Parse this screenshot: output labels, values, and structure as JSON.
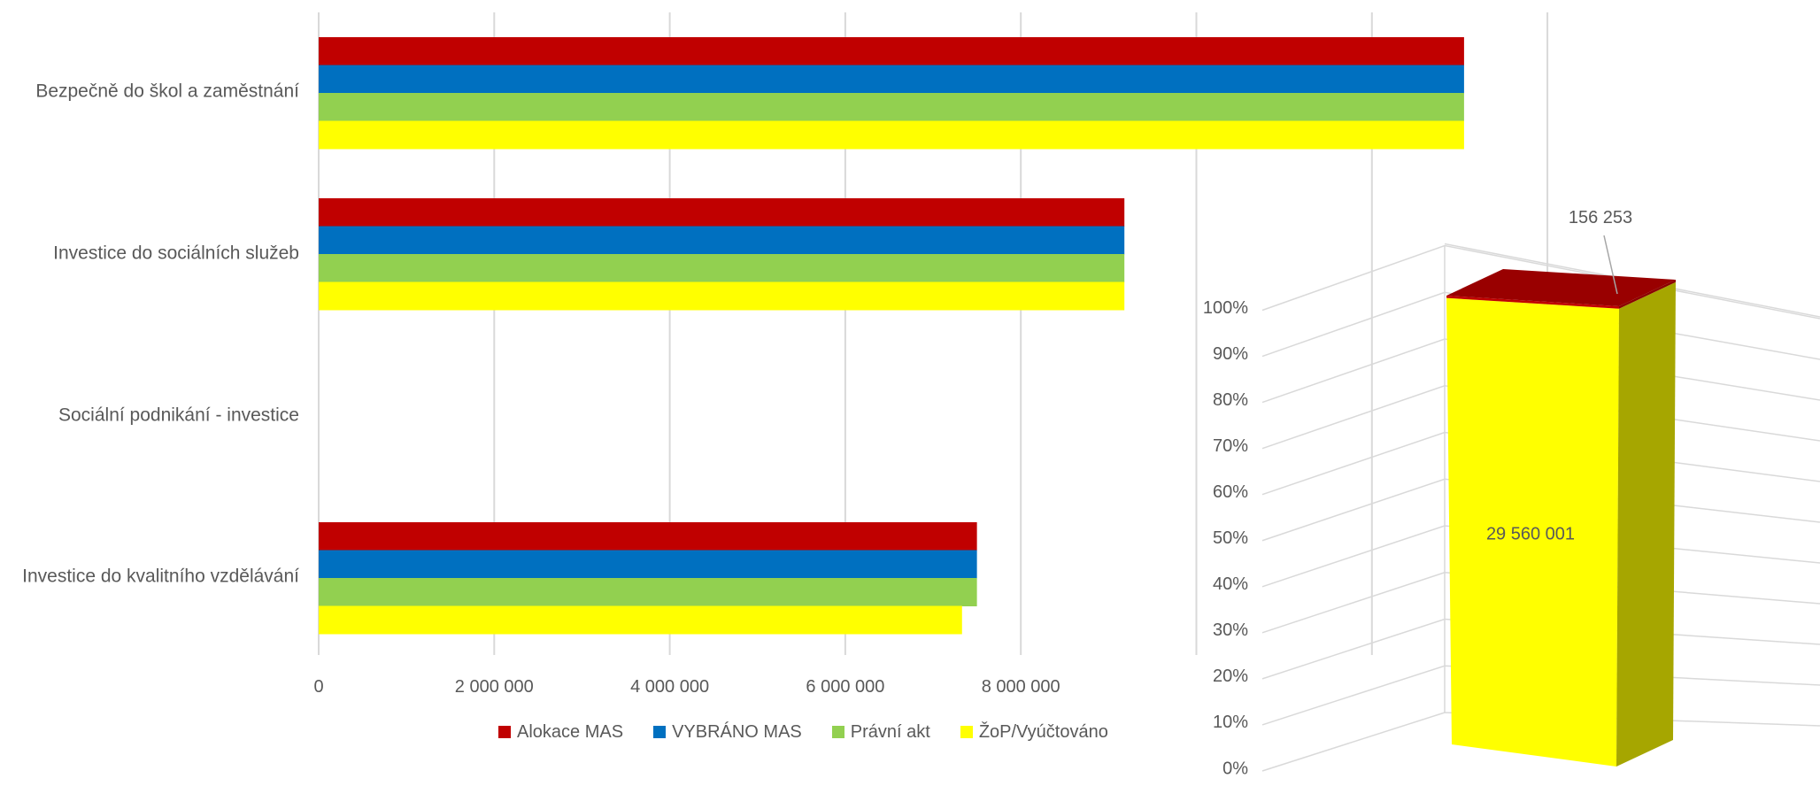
{
  "chart_data": [
    {
      "type": "bar",
      "orientation": "horizontal",
      "categories": [
        "Bezpečně do škol a zaměstnání",
        "Investice do sociálních služeb",
        "Sociální podnikání - investice",
        "Investice do kvalitního vzdělávání"
      ],
      "series": [
        {
          "name": "Alokace MAS",
          "color": "#C00000",
          "values": [
            13050000,
            9180000,
            0,
            7500000
          ]
        },
        {
          "name": "VYBRÁNO MAS",
          "color": "#0070C0",
          "values": [
            13050000,
            9180000,
            0,
            7500000
          ]
        },
        {
          "name": "Právní akt",
          "color": "#92D050",
          "values": [
            13050000,
            9180000,
            0,
            7500000
          ]
        },
        {
          "name": "ŽoP/Vyúčtováno",
          "color": "#FFFF00",
          "values": [
            13050000,
            9180000,
            0,
            7330000
          ]
        }
      ],
      "xlim": [
        0,
        14000000
      ],
      "x_ticks": [
        0,
        2000000,
        4000000,
        6000000,
        8000000
      ],
      "x_tick_labels": [
        "0",
        "2 000 000",
        "4 000 000",
        "6 000 000",
        "8 000 000"
      ],
      "grid": true,
      "legend": "bottom"
    },
    {
      "type": "bar",
      "variant": "3d-stacked-100-percent",
      "segments": [
        {
          "value": 29560001,
          "label": "29 560 001",
          "color": "#FFFF00"
        },
        {
          "value": 156253,
          "label": "156 253",
          "color": "#C00000"
        }
      ],
      "ylim": [
        0,
        100
      ],
      "y_ticks": [
        "0%",
        "10%",
        "20%",
        "30%",
        "40%",
        "50%",
        "60%",
        "70%",
        "80%",
        "90%",
        "100%"
      ],
      "grid": true
    }
  ]
}
